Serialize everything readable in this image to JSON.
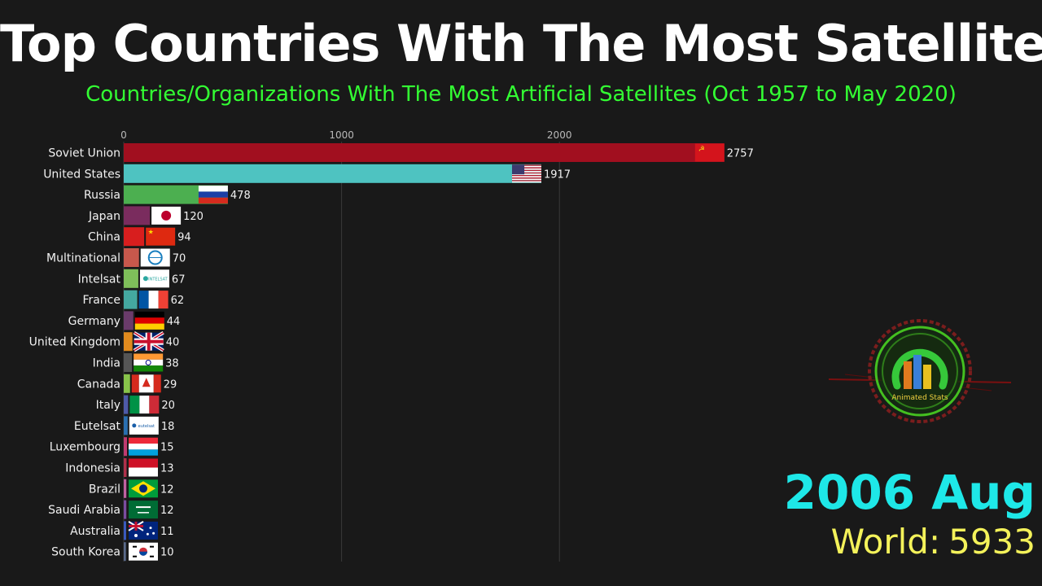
{
  "header": {
    "title": "Top Countries With The Most Satellites",
    "subtitle": "Countries/Organizations With The Most Artificial Satellites (Oct 1957 to May 2020)"
  },
  "status": {
    "date": "2006 Aug",
    "world_label": "World:",
    "world_value": "5933"
  },
  "logo": {
    "text": "Animated Stats"
  },
  "chart_data": {
    "type": "bar",
    "orientation": "horizontal",
    "categories": [
      "Soviet Union",
      "United States",
      "Russia",
      "Japan",
      "China",
      "Multinational",
      "Intelsat",
      "France",
      "Germany",
      "United Kingdom",
      "India",
      "Canada",
      "Italy",
      "Eutelsat",
      "Luxembourg",
      "Indonesia",
      "Brazil",
      "Saudi Arabia",
      "Australia",
      "South Korea"
    ],
    "values": [
      2757,
      1917,
      478,
      120,
      94,
      70,
      67,
      62,
      44,
      40,
      38,
      29,
      20,
      18,
      15,
      13,
      12,
      12,
      11,
      10
    ],
    "bar_colors": [
      "#a10f1f",
      "#4ec3c1",
      "#4caf50",
      "#7a2c5e",
      "#d81e1e",
      "#c8584c",
      "#7fbf5a",
      "#44a8a0",
      "#6a3b6a",
      "#e08a1e",
      "#555555",
      "#88c34a",
      "#4e5aa8",
      "#2a6fb0",
      "#c03a70",
      "#b0304a",
      "#c060a0",
      "#7a4ca0",
      "#3a5ac0",
      "#5a6a8a"
    ],
    "flags": [
      "ussr-flag",
      "usa-flag",
      "russia-flag",
      "japan-flag",
      "china-flag",
      "world-bank-logo",
      "intelsat-logo",
      "france-flag",
      "germany-flag",
      "uk-flag",
      "india-flag",
      "canada-flag",
      "italy-flag",
      "eutelsat-logo",
      "luxembourg-flag",
      "indonesia-flag",
      "brazil-flag",
      "saudi-arabia-flag",
      "australia-flag",
      "south-korea-flag"
    ],
    "xaxis_ticks": [
      0,
      1000,
      2000
    ],
    "xlim": [
      0,
      2900
    ],
    "grid": true
  }
}
